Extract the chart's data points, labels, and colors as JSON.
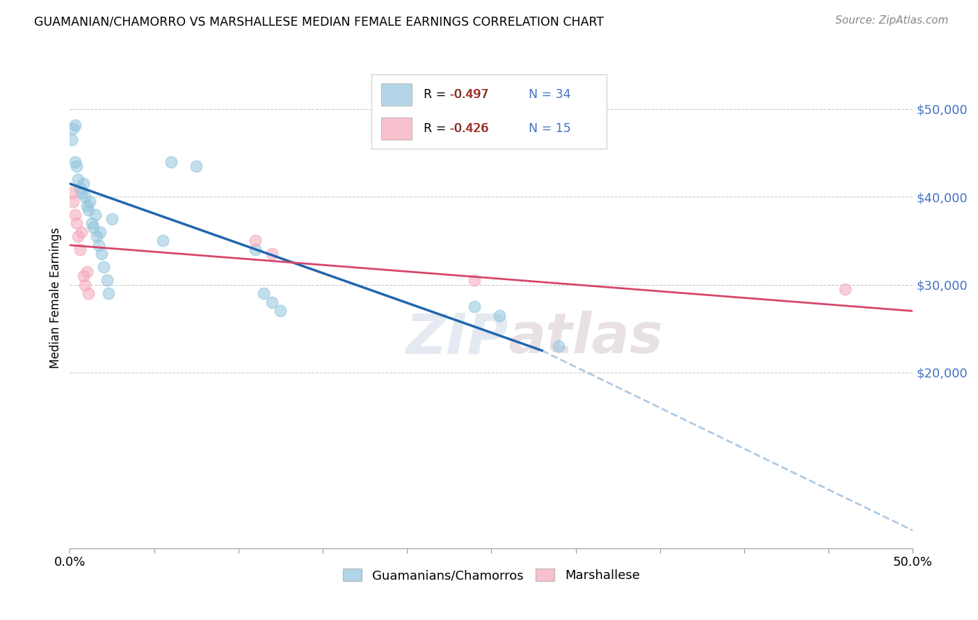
{
  "title": "GUAMANIAN/CHAMORRO VS MARSHALLESE MEDIAN FEMALE EARNINGS CORRELATION CHART",
  "source": "Source: ZipAtlas.com",
  "ylabel": "Median Female Earnings",
  "yticks": [
    20000,
    30000,
    40000,
    50000
  ],
  "ytick_labels": [
    "$20,000",
    "$30,000",
    "$40,000",
    "$50,000"
  ],
  "xlim": [
    0.0,
    0.5
  ],
  "ylim": [
    0,
    57000
  ],
  "legend_blue_r": "R = -0.497",
  "legend_blue_n": "N = 34",
  "legend_pink_r": "R = -0.426",
  "legend_pink_n": "N = 15",
  "blue_color": "#92c5de",
  "pink_color": "#f4a7b9",
  "blue_line_color": "#2166ac",
  "pink_line_color": "#d6456a",
  "background_color": "#ffffff",
  "grid_color": "#bbbbbb",
  "blue_points_x": [
    0.001,
    0.002,
    0.003,
    0.003,
    0.004,
    0.005,
    0.006,
    0.007,
    0.008,
    0.009,
    0.01,
    0.011,
    0.012,
    0.013,
    0.014,
    0.015,
    0.016,
    0.017,
    0.018,
    0.019,
    0.02,
    0.022,
    0.023,
    0.025,
    0.055,
    0.06,
    0.075,
    0.11,
    0.115,
    0.12,
    0.125,
    0.24,
    0.255,
    0.29
  ],
  "blue_points_y": [
    46500,
    47800,
    48200,
    44000,
    43500,
    42000,
    41000,
    40500,
    41500,
    40000,
    39000,
    38500,
    39500,
    37000,
    36500,
    38000,
    35500,
    34500,
    36000,
    33500,
    32000,
    30500,
    29000,
    37500,
    35000,
    44000,
    43500,
    34000,
    29000,
    28000,
    27000,
    27500,
    26500,
    23000
  ],
  "pink_points_x": [
    0.001,
    0.002,
    0.003,
    0.004,
    0.005,
    0.006,
    0.007,
    0.008,
    0.009,
    0.01,
    0.011,
    0.11,
    0.12,
    0.24,
    0.46
  ],
  "pink_points_y": [
    40500,
    39500,
    38000,
    37000,
    35500,
    34000,
    36000,
    31000,
    30000,
    31500,
    29000,
    35000,
    33500,
    30500,
    29500
  ],
  "blue_trendline_x": [
    0.0,
    0.28
  ],
  "blue_trendline_y": [
    41500,
    22500
  ],
  "pink_trendline_x": [
    0.0,
    0.5
  ],
  "pink_trendline_y": [
    34500,
    27000
  ],
  "dashed_line_x": [
    0.28,
    0.5
  ],
  "dashed_line_y": [
    22500,
    2000
  ],
  "xtick_positions": [
    0.0,
    0.5
  ],
  "xtick_labels": [
    "0.0%",
    "50.0%"
  ]
}
